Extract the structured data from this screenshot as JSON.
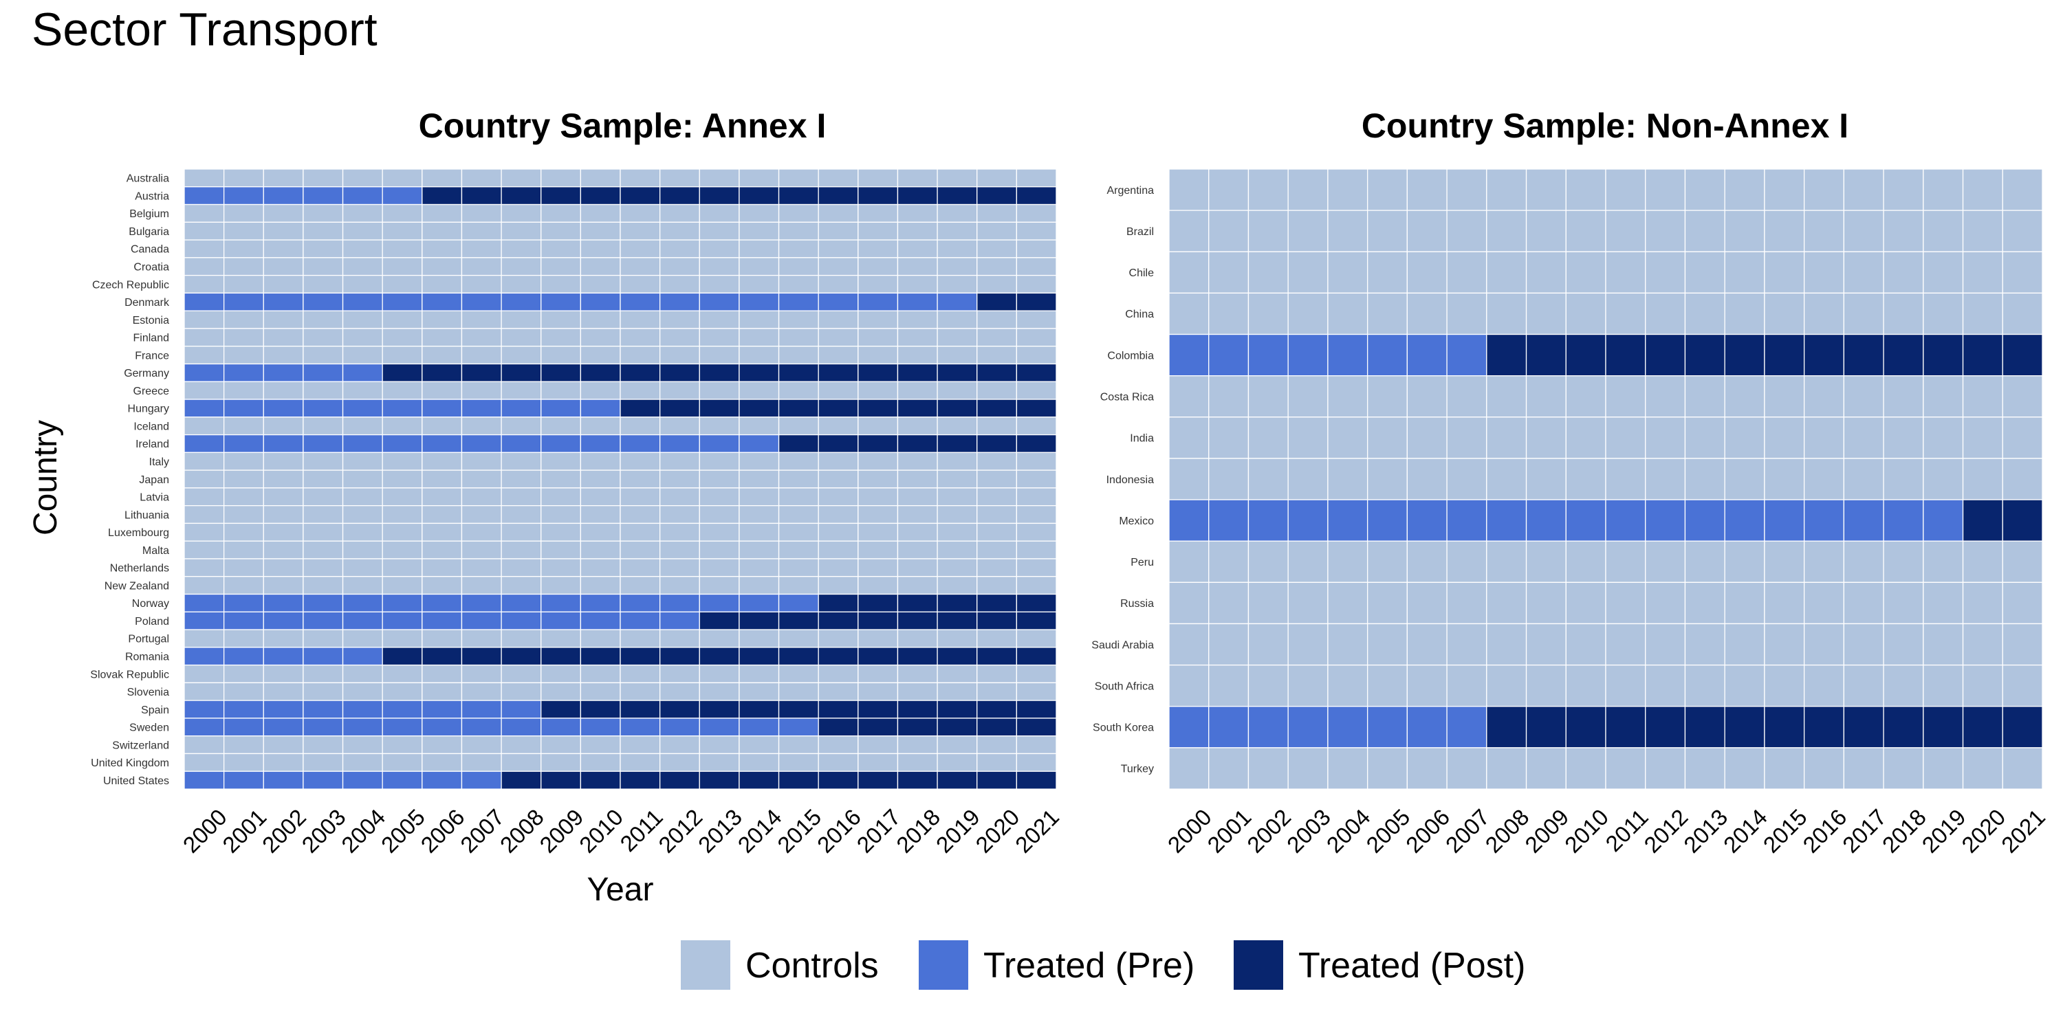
{
  "figure": {
    "title": "Sector Transport",
    "ylabel": "Country",
    "xlabel": "Year"
  },
  "legend": {
    "position": "bottom",
    "items": [
      {
        "label": "Controls",
        "color": "#B0C4DE"
      },
      {
        "label": "Treated (Pre)",
        "color": "#4A72D6"
      },
      {
        "label": "Treated (Post)",
        "color": "#08256E"
      }
    ]
  },
  "chart_data": [
    {
      "type": "heatmap",
      "title": "Country Sample: Annex I",
      "years": [
        "2000",
        "2001",
        "2002",
        "2003",
        "2004",
        "2005",
        "2006",
        "2007",
        "2008",
        "2009",
        "2010",
        "2011",
        "2012",
        "2013",
        "2014",
        "2015",
        "2016",
        "2017",
        "2018",
        "2019",
        "2020",
        "2021"
      ],
      "countries": [
        "Australia",
        "Austria",
        "Belgium",
        "Bulgaria",
        "Canada",
        "Croatia",
        "Czech Republic",
        "Denmark",
        "Estonia",
        "Finland",
        "France",
        "Germany",
        "Greece",
        "Hungary",
        "Iceland",
        "Ireland",
        "Italy",
        "Japan",
        "Latvia",
        "Lithuania",
        "Luxembourg",
        "Malta",
        "Netherlands",
        "New Zealand",
        "Norway",
        "Poland",
        "Portugal",
        "Romania",
        "Slovak Republic",
        "Slovenia",
        "Spain",
        "Sweden",
        "Switzerland",
        "United Kingdom",
        "United States"
      ],
      "treatment_start": {
        "Austria": 2006,
        "Denmark": 2020,
        "Germany": 2005,
        "Hungary": 2011,
        "Ireland": 2015,
        "Norway": 2016,
        "Poland": 2013,
        "Romania": 2005,
        "Spain": 2009,
        "Sweden": 2016,
        "United States": 2008
      }
    },
    {
      "type": "heatmap",
      "title": "Country Sample: Non-Annex I",
      "years": [
        "2000",
        "2001",
        "2002",
        "2003",
        "2004",
        "2005",
        "2006",
        "2007",
        "2008",
        "2009",
        "2010",
        "2011",
        "2012",
        "2013",
        "2014",
        "2015",
        "2016",
        "2017",
        "2018",
        "2019",
        "2020",
        "2021"
      ],
      "countries": [
        "Argentina",
        "Brazil",
        "Chile",
        "China",
        "Colombia",
        "Costa Rica",
        "India",
        "Indonesia",
        "Mexico",
        "Peru",
        "Russia",
        "Saudi Arabia",
        "South Africa",
        "South Korea",
        "Turkey"
      ],
      "treatment_start": {
        "Colombia": 2008,
        "Mexico": 2020,
        "South Korea": 2008
      }
    }
  ]
}
